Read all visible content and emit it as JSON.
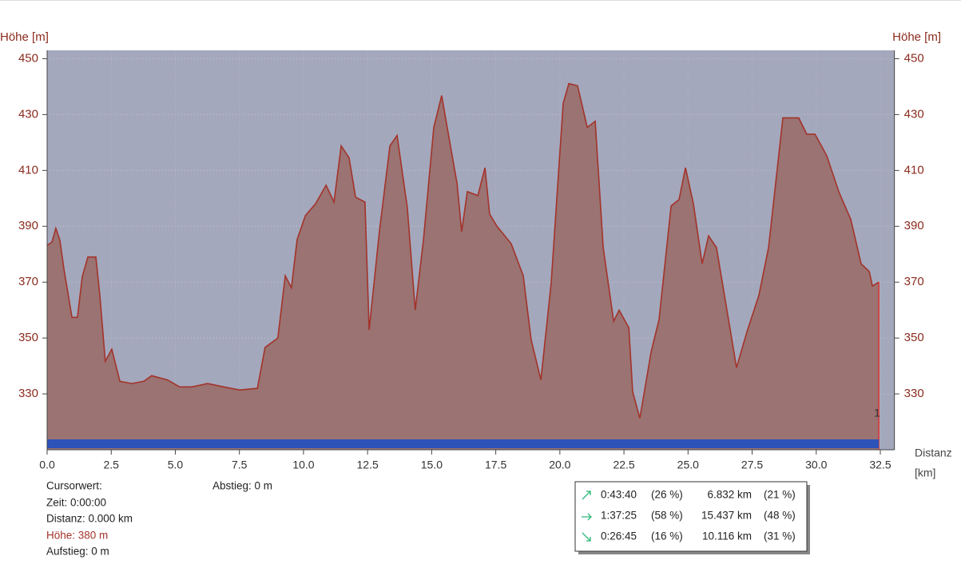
{
  "chart_data": {
    "type": "area",
    "y_label": "Höhe [m]",
    "x_label": "Distanz",
    "x_unit": "[km]",
    "marker_label": "1",
    "x": [
      0,
      0.19,
      0.34,
      0.5,
      0.65,
      0.97,
      1.18,
      1.37,
      1.59,
      1.9,
      2.06,
      2.27,
      2.52,
      2.84,
      3.3,
      3.77,
      4.08,
      4.7,
      5.17,
      5.64,
      6.26,
      6.89,
      7.51,
      8.2,
      8.5,
      9.0,
      9.29,
      9.53,
      9.75,
      10.07,
      10.47,
      10.88,
      11.19,
      11.47,
      11.78,
      12.03,
      12.4,
      12.56,
      12.96,
      13.37,
      13.65,
      14.05,
      14.36,
      14.68,
      15.08,
      15.39,
      15.77,
      15.99,
      16.17,
      16.39,
      16.8,
      17.08,
      17.26,
      17.54,
      18.1,
      18.57,
      18.88,
      19.26,
      19.66,
      20.13,
      20.35,
      20.69,
      21.07,
      21.38,
      21.69,
      22.1,
      22.31,
      22.69,
      22.84,
      23.12,
      23.56,
      23.87,
      24.34,
      24.65,
      24.9,
      25.21,
      25.55,
      25.8,
      26.11,
      26.58,
      26.89,
      27.3,
      27.76,
      28.14,
      28.7,
      29.01,
      29.32,
      29.63,
      29.95,
      30.41,
      30.88,
      31.35,
      31.75,
      32.07,
      32.19,
      32.44
    ],
    "values": [
      383.2,
      384.4,
      389.3,
      385,
      375,
      357.4,
      357.4,
      372,
      379,
      379,
      365,
      341.7,
      346,
      334.5,
      333.7,
      334.5,
      336.5,
      335,
      332.5,
      332.5,
      333.7,
      332.5,
      331.4,
      332,
      346.6,
      350,
      372.3,
      368,
      385.2,
      393.8,
      398.1,
      404.7,
      398.7,
      418.8,
      414.5,
      400.4,
      398.7,
      352.9,
      388.1,
      418.8,
      422.5,
      396.7,
      360,
      385.2,
      425.4,
      436.8,
      416.8,
      405.3,
      388.1,
      402.4,
      401,
      411,
      394.4,
      390.1,
      383.8,
      372.3,
      349.4,
      335,
      369.5,
      434,
      441.1,
      440.3,
      425.4,
      427.6,
      382.4,
      356,
      360,
      353.7,
      330.8,
      321.3,
      345.1,
      356.6,
      397.3,
      399.6,
      411,
      398.1,
      376.6,
      386.6,
      382.4,
      356.6,
      339.4,
      352.3,
      365.2,
      382.4,
      428.8,
      428.8,
      428.8,
      423,
      423,
      415.3,
      402.4,
      392.4,
      376.6,
      373.8,
      368.6,
      370
    ],
    "color": "#a3332a",
    "fill_color": "#9a7372",
    "background_color": "#a4a8bc",
    "bar_color": "#2d52b8",
    "xlim": [
      0,
      33.05
    ],
    "ylim": [
      310,
      453
    ],
    "xticks": [
      {
        "value": 0,
        "label": "0.0"
      },
      2.5,
      {
        "value": 5,
        "label": "5.0"
      },
      7.5,
      {
        "value": 10,
        "label": "10.0"
      },
      12.5,
      {
        "value": 15,
        "label": "15.0"
      },
      17.5,
      {
        "value": 20,
        "label": "20.0"
      },
      22.5,
      {
        "value": 25,
        "label": "25.0"
      },
      27.5,
      {
        "value": 30,
        "label": "30.0"
      },
      32.5
    ],
    "yticks": [
      330,
      350,
      370,
      390,
      410,
      430,
      450
    ],
    "grid": true
  },
  "cursor": {
    "title": "Cursorwert:",
    "time": "Zeit: 0:00:00",
    "distance": "Distanz: 0.000 km",
    "height": "Höhe:  380 m",
    "ascent": "Aufstieg: 0 m",
    "descent": "Abstieg: 0 m"
  },
  "stats": [
    {
      "time": "0:43:40",
      "time_pct": "(26 %)",
      "dist": "6.832 km",
      "dist_pct": "(21 %)"
    },
    {
      "time": "1:37:25",
      "time_pct": "(58 %)",
      "dist": "15.437 km",
      "dist_pct": "(48 %)"
    },
    {
      "time": "0:26:45",
      "time_pct": "(16 %)",
      "dist": "10.116 km",
      "dist_pct": "(31 %)"
    }
  ]
}
